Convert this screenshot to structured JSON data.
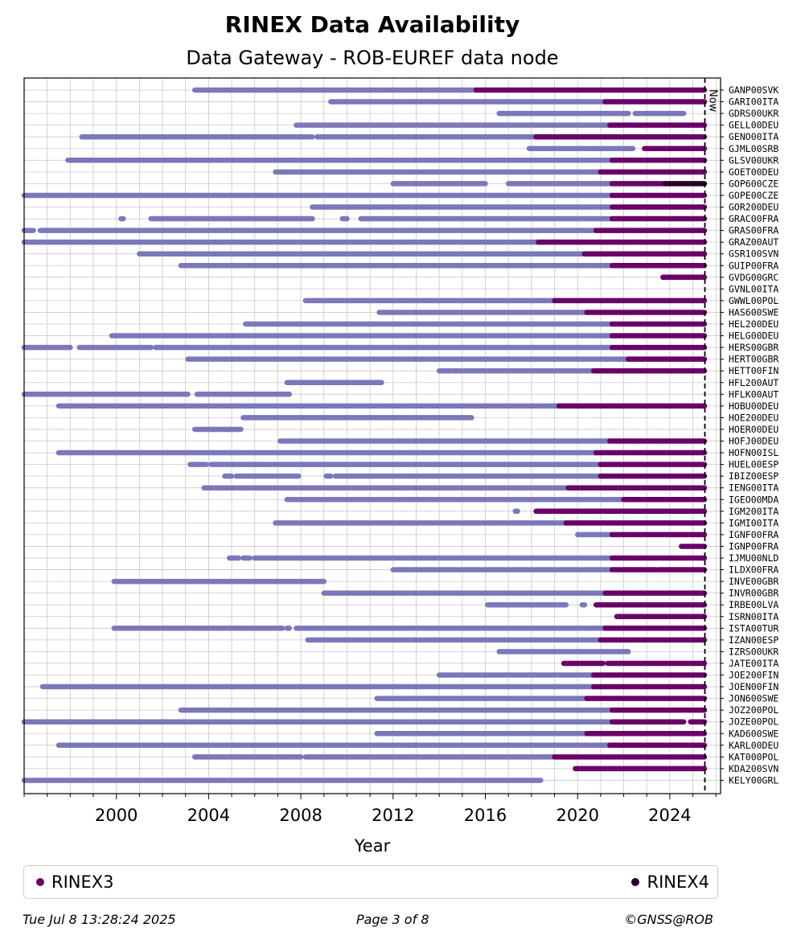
{
  "title": "RINEX Data Availability",
  "subtitle": "Data Gateway - ROB-EUREF data node",
  "footer": {
    "timestamp": "Tue Jul  8 13:28:24 2025",
    "page": "Page 3 of 8",
    "copyright": "©GNSS@ROB"
  },
  "legend": [
    {
      "label": "RINEX3",
      "color": "#6a0068"
    },
    {
      "label": "RINEX4",
      "color": "#250027"
    }
  ],
  "chart_data": {
    "type": "timeline",
    "xlabel": "Year",
    "xlim": [
      1996.0,
      2026.2
    ],
    "xticks": [
      2000,
      2004,
      2008,
      2012,
      2016,
      2020,
      2024
    ],
    "now": 2025.52,
    "now_label": "Now",
    "colors": {
      "RINEX2": "#7b78ba",
      "RINEX3": "#6a0068",
      "RINEX4": "#250027"
    },
    "stations": [
      {
        "name": "GANP00SVK",
        "segments": [
          [
            2003.4,
            2015.6,
            "RINEX2"
          ],
          [
            2015.6,
            2025.5,
            "RINEX3"
          ]
        ]
      },
      {
        "name": "GARI00ITA",
        "segments": [
          [
            2009.3,
            2021.2,
            "RINEX2"
          ],
          [
            2021.2,
            2025.5,
            "RINEX3"
          ]
        ]
      },
      {
        "name": "GDRS00UKR",
        "segments": [
          [
            2016.6,
            2022.2,
            "RINEX2"
          ],
          [
            2022.5,
            2022.8,
            "RINEX2"
          ],
          [
            2022.9,
            2024.6,
            "RINEX2"
          ]
        ]
      },
      {
        "name": "GELL00DEU",
        "segments": [
          [
            2007.8,
            2021.4,
            "RINEX2"
          ],
          [
            2021.4,
            2025.5,
            "RINEX3"
          ]
        ]
      },
      {
        "name": "GENO00ITA",
        "segments": [
          [
            1998.5,
            2006.5,
            "RINEX2"
          ],
          [
            2006.5,
            2008.5,
            "RINEX2"
          ],
          [
            2008.7,
            2018.2,
            "RINEX2"
          ],
          [
            2018.2,
            2025.5,
            "RINEX3"
          ]
        ]
      },
      {
        "name": "GJML00SRB",
        "segments": [
          [
            2017.9,
            2022.4,
            "RINEX2"
          ],
          [
            2022.9,
            2025.5,
            "RINEX3"
          ]
        ]
      },
      {
        "name": "GLSV00UKR",
        "segments": [
          [
            1997.9,
            2021.5,
            "RINEX2"
          ],
          [
            2021.5,
            2022.8,
            "RINEX3"
          ],
          [
            2022.9,
            2025.5,
            "RINEX3"
          ]
        ]
      },
      {
        "name": "GOET00DEU",
        "segments": [
          [
            2006.9,
            2021.0,
            "RINEX2"
          ],
          [
            2021.0,
            2025.5,
            "RINEX3"
          ]
        ]
      },
      {
        "name": "GOP600CZE",
        "segments": [
          [
            2012.0,
            2016.0,
            "RINEX2"
          ],
          [
            2017.0,
            2021.5,
            "RINEX2"
          ],
          [
            2021.5,
            2023.8,
            "RINEX3"
          ],
          [
            2023.8,
            2025.5,
            "RINEX4"
          ]
        ]
      },
      {
        "name": "GOPE00CZE",
        "segments": [
          [
            1996.0,
            2021.5,
            "RINEX2"
          ],
          [
            2021.5,
            2025.5,
            "RINEX3"
          ]
        ]
      },
      {
        "name": "GOR200DEU",
        "segments": [
          [
            2008.5,
            2021.5,
            "RINEX2"
          ],
          [
            2021.5,
            2025.5,
            "RINEX3"
          ]
        ]
      },
      {
        "name": "GRAC00FRA",
        "segments": [
          [
            2000.2,
            2000.3,
            "RINEX2"
          ],
          [
            2001.5,
            2008.5,
            "RINEX2"
          ],
          [
            2009.8,
            2010.0,
            "RINEX2"
          ],
          [
            2010.6,
            2021.5,
            "RINEX2"
          ],
          [
            2021.5,
            2025.5,
            "RINEX3"
          ]
        ]
      },
      {
        "name": "GRAS00FRA",
        "segments": [
          [
            1996.0,
            1996.4,
            "RINEX2"
          ],
          [
            1996.7,
            2003.8,
            "RINEX2"
          ],
          [
            2003.9,
            2020.8,
            "RINEX2"
          ],
          [
            2020.8,
            2025.5,
            "RINEX3"
          ]
        ]
      },
      {
        "name": "GRAZ00AUT",
        "segments": [
          [
            1996.0,
            2018.3,
            "RINEX2"
          ],
          [
            2018.3,
            2025.5,
            "RINEX3"
          ]
        ]
      },
      {
        "name": "GSR100SVN",
        "segments": [
          [
            2001.0,
            2020.3,
            "RINEX2"
          ],
          [
            2020.3,
            2025.5,
            "RINEX3"
          ]
        ]
      },
      {
        "name": "GUIP00FRA",
        "segments": [
          [
            2002.8,
            2021.5,
            "RINEX2"
          ],
          [
            2021.5,
            2025.5,
            "RINEX3"
          ]
        ]
      },
      {
        "name": "GVDG00GRC",
        "segments": [
          [
            2023.7,
            2025.5,
            "RINEX3"
          ]
        ]
      },
      {
        "name": "GVNL00ITA",
        "segments": []
      },
      {
        "name": "GWWL00POL",
        "segments": [
          [
            2008.2,
            2019.0,
            "RINEX2"
          ],
          [
            2019.0,
            2025.5,
            "RINEX3"
          ]
        ]
      },
      {
        "name": "HAS600SWE",
        "segments": [
          [
            2011.4,
            2020.4,
            "RINEX2"
          ],
          [
            2020.4,
            2025.5,
            "RINEX3"
          ]
        ]
      },
      {
        "name": "HEL200DEU",
        "segments": [
          [
            2005.6,
            2021.5,
            "RINEX2"
          ],
          [
            2021.5,
            2025.5,
            "RINEX3"
          ]
        ]
      },
      {
        "name": "HELG00DEU",
        "segments": [
          [
            1999.8,
            2021.5,
            "RINEX2"
          ],
          [
            2021.5,
            2025.5,
            "RINEX3"
          ]
        ]
      },
      {
        "name": "HERS00GBR",
        "segments": [
          [
            1996.0,
            1998.0,
            "RINEX2"
          ],
          [
            1998.4,
            2001.5,
            "RINEX2"
          ],
          [
            2001.7,
            2021.5,
            "RINEX2"
          ],
          [
            2021.5,
            2025.5,
            "RINEX3"
          ]
        ]
      },
      {
        "name": "HERT00GBR",
        "segments": [
          [
            2003.1,
            2022.2,
            "RINEX2"
          ],
          [
            2022.2,
            2025.5,
            "RINEX3"
          ]
        ]
      },
      {
        "name": "HETT00FIN",
        "segments": [
          [
            2014.0,
            2014.5,
            "RINEX2"
          ],
          [
            2014.6,
            2015.0,
            "RINEX2"
          ],
          [
            2015.1,
            2020.7,
            "RINEX2"
          ],
          [
            2020.7,
            2025.5,
            "RINEX3"
          ]
        ]
      },
      {
        "name": "HFL200AUT",
        "segments": [
          [
            2007.4,
            2011.5,
            "RINEX2"
          ]
        ]
      },
      {
        "name": "HFLK00AUT",
        "segments": [
          [
            1996.0,
            2002.8,
            "RINEX2"
          ],
          [
            2002.9,
            2003.1,
            "RINEX2"
          ],
          [
            2003.5,
            2007.5,
            "RINEX2"
          ]
        ]
      },
      {
        "name": "HOBU00DEU",
        "segments": [
          [
            1997.5,
            2019.2,
            "RINEX2"
          ],
          [
            2019.2,
            2025.5,
            "RINEX3"
          ]
        ]
      },
      {
        "name": "HOE200DEU",
        "segments": [
          [
            2005.5,
            2015.4,
            "RINEX2"
          ]
        ]
      },
      {
        "name": "HOER00DEU",
        "segments": [
          [
            2003.4,
            2005.4,
            "RINEX2"
          ]
        ]
      },
      {
        "name": "HOFJ00DEU",
        "segments": [
          [
            2007.1,
            2021.4,
            "RINEX2"
          ],
          [
            2021.4,
            2025.5,
            "RINEX3"
          ]
        ]
      },
      {
        "name": "HOFN00ISL",
        "segments": [
          [
            1997.5,
            2020.8,
            "RINEX2"
          ],
          [
            2020.8,
            2025.5,
            "RINEX3"
          ]
        ]
      },
      {
        "name": "HUEL00ESP",
        "segments": [
          [
            2003.2,
            2003.9,
            "RINEX2"
          ],
          [
            2004.1,
            2006.7,
            "RINEX2"
          ],
          [
            2006.8,
            2021.0,
            "RINEX2"
          ],
          [
            2021.0,
            2025.5,
            "RINEX3"
          ]
        ]
      },
      {
        "name": "IBIZ00ESP",
        "segments": [
          [
            2004.7,
            2005.0,
            "RINEX2"
          ],
          [
            2005.2,
            2007.9,
            "RINEX2"
          ],
          [
            2009.1,
            2009.3,
            "RINEX2"
          ],
          [
            2009.5,
            2021.0,
            "RINEX2"
          ],
          [
            2021.0,
            2025.5,
            "RINEX3"
          ]
        ]
      },
      {
        "name": "IENG00ITA",
        "segments": [
          [
            2003.8,
            2019.6,
            "RINEX2"
          ],
          [
            2019.6,
            2025.5,
            "RINEX3"
          ]
        ]
      },
      {
        "name": "IGEO00MDA",
        "segments": [
          [
            2007.4,
            2022.0,
            "RINEX2"
          ],
          [
            2022.0,
            2025.5,
            "RINEX3"
          ]
        ]
      },
      {
        "name": "IGM200ITA",
        "segments": [
          [
            2017.3,
            2017.4,
            "RINEX2"
          ],
          [
            2018.2,
            2025.5,
            "RINEX3"
          ]
        ]
      },
      {
        "name": "IGMI00ITA",
        "segments": [
          [
            2006.9,
            2019.5,
            "RINEX2"
          ],
          [
            2019.5,
            2025.5,
            "RINEX3"
          ]
        ]
      },
      {
        "name": "IGNF00FRA",
        "segments": [
          [
            2020.0,
            2021.5,
            "RINEX2"
          ],
          [
            2021.5,
            2025.5,
            "RINEX3"
          ]
        ]
      },
      {
        "name": "IGNP00FRA",
        "segments": [
          [
            2024.5,
            2025.5,
            "RINEX3"
          ]
        ]
      },
      {
        "name": "IJMU00NLD",
        "segments": [
          [
            2004.9,
            2005.3,
            "RINEX2"
          ],
          [
            2005.5,
            2005.8,
            "RINEX2"
          ],
          [
            2006.0,
            2021.5,
            "RINEX2"
          ],
          [
            2021.5,
            2025.5,
            "RINEX3"
          ]
        ]
      },
      {
        "name": "ILDX00FRA",
        "segments": [
          [
            2012.0,
            2021.5,
            "RINEX2"
          ],
          [
            2021.5,
            2023.4,
            "RINEX3"
          ],
          [
            2023.5,
            2025.5,
            "RINEX3"
          ]
        ]
      },
      {
        "name": "INVE00GBR",
        "segments": [
          [
            1999.9,
            2009.0,
            "RINEX2"
          ]
        ]
      },
      {
        "name": "INVR00GBR",
        "segments": [
          [
            2009.0,
            2021.2,
            "RINEX2"
          ],
          [
            2021.2,
            2025.5,
            "RINEX3"
          ]
        ]
      },
      {
        "name": "IRBE00LVA",
        "segments": [
          [
            2016.1,
            2019.5,
            "RINEX2"
          ],
          [
            2020.2,
            2020.3,
            "RINEX2"
          ],
          [
            2020.8,
            2025.5,
            "RINEX3"
          ]
        ]
      },
      {
        "name": "ISRN00ITA",
        "segments": [
          [
            2021.7,
            2025.5,
            "RINEX3"
          ]
        ]
      },
      {
        "name": "ISTA00TUR",
        "segments": [
          [
            1999.9,
            2001.9,
            "RINEX2"
          ],
          [
            2002.0,
            2006.9,
            "RINEX2"
          ],
          [
            2007.0,
            2007.2,
            "RINEX2"
          ],
          [
            2007.4,
            2007.5,
            "RINEX2"
          ],
          [
            2007.8,
            2021.2,
            "RINEX2"
          ],
          [
            2021.2,
            2025.5,
            "RINEX3"
          ]
        ]
      },
      {
        "name": "IZAN00ESP",
        "segments": [
          [
            2008.3,
            2021.0,
            "RINEX2"
          ],
          [
            2021.0,
            2025.5,
            "RINEX3"
          ]
        ]
      },
      {
        "name": "IZRS00UKR",
        "segments": [
          [
            2016.6,
            2022.2,
            "RINEX2"
          ]
        ]
      },
      {
        "name": "JATE00ITA",
        "segments": [
          [
            2019.4,
            2021.1,
            "RINEX3"
          ],
          [
            2021.3,
            2022.0,
            "RINEX3"
          ],
          [
            2022.0,
            2025.5,
            "RINEX3"
          ]
        ]
      },
      {
        "name": "JOE200FIN",
        "segments": [
          [
            2014.0,
            2020.7,
            "RINEX2"
          ],
          [
            2020.7,
            2025.5,
            "RINEX3"
          ]
        ]
      },
      {
        "name": "JOEN00FIN",
        "segments": [
          [
            1996.8,
            2020.7,
            "RINEX2"
          ],
          [
            2020.7,
            2025.5,
            "RINEX3"
          ]
        ]
      },
      {
        "name": "JON600SWE",
        "segments": [
          [
            2011.3,
            2020.4,
            "RINEX2"
          ],
          [
            2020.4,
            2025.5,
            "RINEX3"
          ]
        ]
      },
      {
        "name": "JOZ200POL",
        "segments": [
          [
            2002.8,
            2021.5,
            "RINEX2"
          ],
          [
            2021.5,
            2025.5,
            "RINEX3"
          ]
        ]
      },
      {
        "name": "JOZE00POL",
        "segments": [
          [
            1996.0,
            2021.5,
            "RINEX2"
          ],
          [
            2021.5,
            2024.6,
            "RINEX3"
          ],
          [
            2024.9,
            2025.5,
            "RINEX3"
          ]
        ]
      },
      {
        "name": "KAD600SWE",
        "segments": [
          [
            2011.3,
            2020.4,
            "RINEX2"
          ],
          [
            2020.4,
            2025.5,
            "RINEX3"
          ]
        ]
      },
      {
        "name": "KARL00DEU",
        "segments": [
          [
            1997.5,
            2021.4,
            "RINEX2"
          ],
          [
            2021.4,
            2025.5,
            "RINEX3"
          ]
        ]
      },
      {
        "name": "KAT000POL",
        "segments": [
          [
            2003.4,
            2008.0,
            "RINEX2"
          ],
          [
            2008.2,
            2019.0,
            "RINEX2"
          ],
          [
            2019.0,
            2025.5,
            "RINEX3"
          ]
        ]
      },
      {
        "name": "KDA200SVN",
        "segments": [
          [
            2019.9,
            2025.5,
            "RINEX3"
          ]
        ]
      },
      {
        "name": "KELY00GRL",
        "segments": [
          [
            1996.0,
            2018.4,
            "RINEX2"
          ]
        ]
      }
    ]
  }
}
